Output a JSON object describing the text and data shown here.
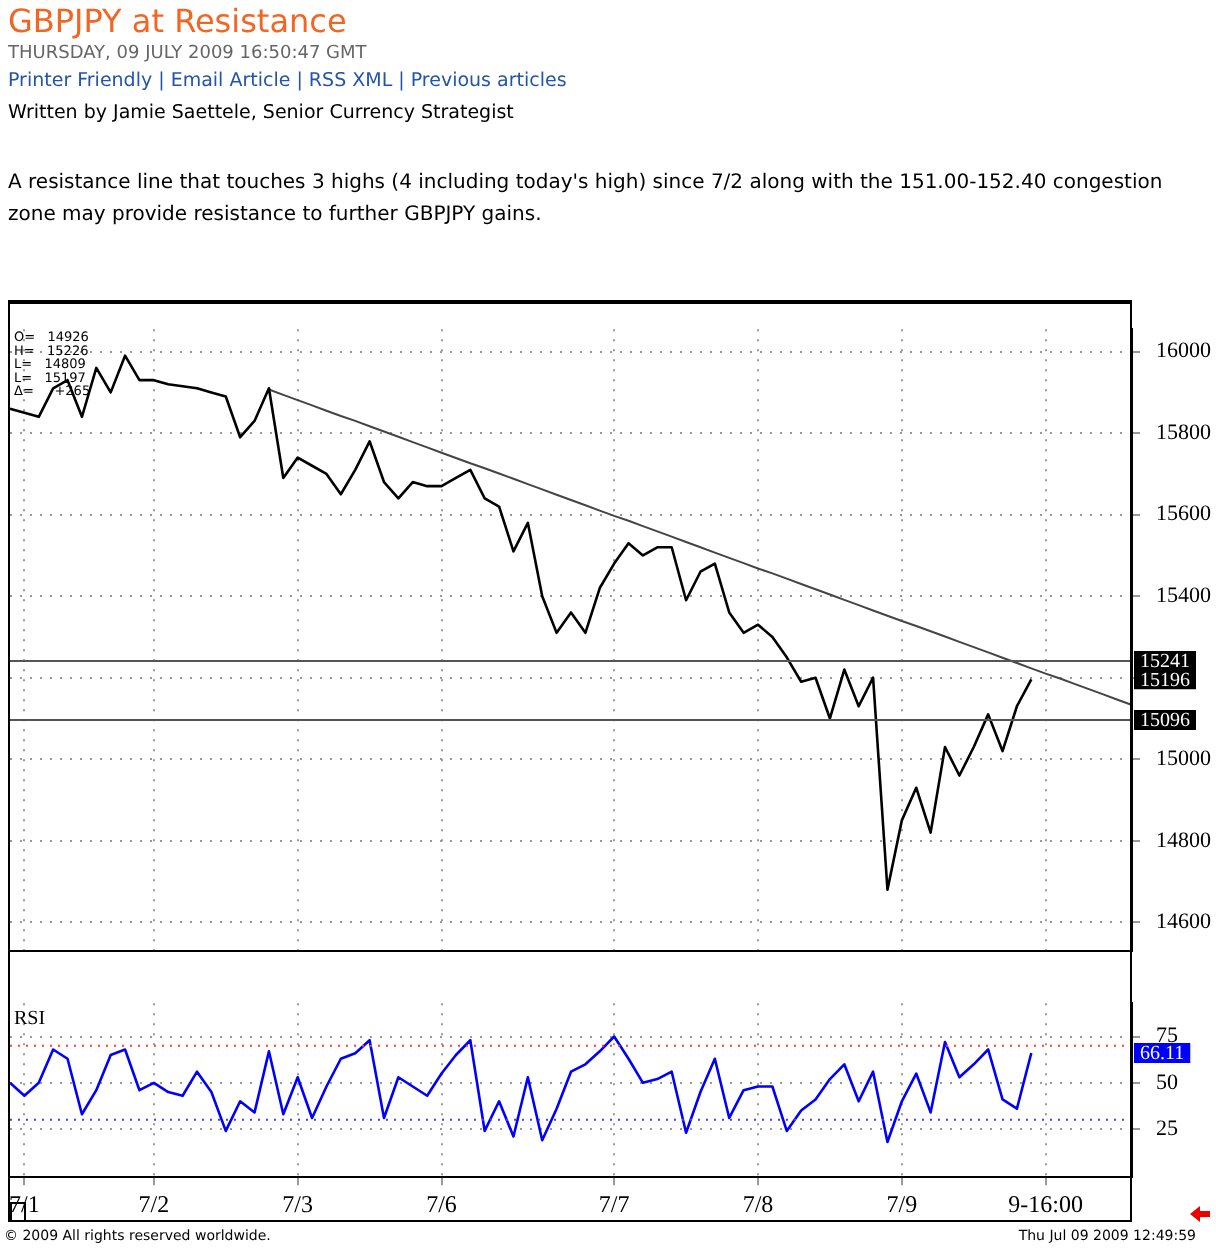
{
  "chart_data": [
    {
      "type": "line",
      "title": "GBPJPY at Resistance",
      "subtitle": "THURSDAY, 09 JULY 2009 16:50:47 GMT",
      "annotations": [
        "Printer Friendly | Email Article | RSS XML | Previous articles",
        "Written by Jamie Saettele, Senior Currency Strategist",
        "A resistance line that touches 3 highs (4 including today's high) since 7/2 along with the 151.00-152.40 congestion zone may provide resistance to further GBPJPY gains.",
        "O=   14926",
        "H=   15226",
        "L=   14809",
        "L=   15197",
        "Δ=     +265",
        {
          "text": "15196",
          "y": 15196
        }
      ],
      "categories": [
        null,
        null,
        null,
        null,
        null,
        null,
        null,
        null,
        null,
        null,
        null,
        null,
        null,
        null,
        null,
        null,
        null,
        null,
        null,
        null,
        null,
        null,
        null,
        null,
        null,
        null,
        null,
        null,
        null,
        null,
        null,
        null,
        null,
        null,
        null,
        null,
        null,
        null,
        null,
        null,
        null,
        null,
        null,
        null,
        null,
        null,
        null,
        null,
        null,
        null,
        null,
        null,
        null,
        null,
        null,
        null,
        null,
        null,
        null,
        null,
        null,
        null,
        null,
        null,
        null,
        null,
        null,
        null,
        null,
        null,
        null,
        null,
        null,
        null,
        null,
        null,
        null,
        null,
        null
      ],
      "series": [
        {
          "color": "#000000",
          "values": [
            15860,
            15850,
            15840,
            15910,
            15930,
            15840,
            15960,
            15900,
            15990,
            15930,
            15930,
            15920,
            15915,
            15910,
            15900,
            15890,
            15790,
            15830,
            15910,
            15690,
            15740,
            15720,
            15700,
            15650,
            15710,
            15780,
            15680,
            15640,
            15680,
            15670,
            15670,
            15690,
            15710,
            15640,
            15620,
            15510,
            15580,
            15400,
            15310,
            15360,
            15310,
            15420,
            15480,
            15530,
            15500,
            15520,
            15520,
            15390,
            15460,
            15480,
            15360,
            15310,
            15330,
            15300,
            15250,
            15190,
            15200,
            15100,
            15220,
            15130,
            15200,
            14680,
            14850,
            14930,
            14820,
            15030,
            14960,
            15030,
            15110,
            15020,
            15130,
            15196,
            null,
            null,
            null,
            null,
            null,
            null,
            null
          ]
        },
        {
          "type": "line",
          "color": "#444444",
          "values": [
            null,
            null,
            null,
            null,
            null,
            null,
            null,
            null,
            null,
            null,
            null,
            null,
            null,
            null,
            null,
            null,
            null,
            null,
            15907,
            15894,
            15881,
            15868,
            15855,
            15842,
            15830,
            15817,
            15804,
            15791,
            15778,
            15765,
            15752,
            15739,
            15726,
            15714,
            15701,
            15688,
            15675,
            15662,
            15649,
            15636,
            15623,
            15610,
            15597,
            15585,
            15572,
            15559,
            15546,
            15533,
            15520,
            15507,
            15494,
            15481,
            15468,
            15456,
            15443,
            15430,
            15417,
            15404,
            15391,
            15378,
            15365,
            15352,
            15339,
            15327,
            15314,
            15301,
            15288,
            15275,
            15262,
            15249,
            15236,
            15223,
            15210,
            15198,
            15185,
            15172,
            15159,
            15146,
            15133
          ]
        }
      ],
      "ref_lines": [
        {
          "axis": "y",
          "value": 15241,
          "label": "15241",
          "color": "#555555"
        },
        {
          "axis": "y",
          "value": 15096,
          "label": "15096",
          "color": "#555555"
        }
      ],
      "ylim": [
        14530,
        16055
      ],
      "yticks": [
        14600,
        14800,
        15000,
        {
          "value": 15200,
          "label": null
        },
        15400,
        15600,
        15800,
        16000
      ],
      "tick_labels": "y",
      "grid": true,
      "legend": false,
      "marker": "none",
      "line_style": "solid"
    },
    {
      "type": "line",
      "title": "RSI",
      "annotations": [
        "© 2009 All rights reserved worldwide.",
        "Thu Jul 09 2009 12:49:59",
        {
          "text": "66.11",
          "y": 66.11
        }
      ],
      "categories": [
        null,
        "7/1",
        null,
        null,
        null,
        null,
        null,
        null,
        null,
        null,
        "7/2",
        null,
        null,
        null,
        null,
        null,
        null,
        null,
        null,
        null,
        "7/3",
        null,
        null,
        null,
        null,
        null,
        null,
        null,
        null,
        null,
        "7/6",
        null,
        null,
        null,
        null,
        null,
        null,
        null,
        null,
        null,
        null,
        null,
        "7/7",
        null,
        null,
        null,
        null,
        null,
        null,
        null,
        null,
        null,
        "7/8",
        null,
        null,
        null,
        null,
        null,
        null,
        null,
        null,
        null,
        "7/9",
        null,
        null,
        null,
        null,
        null,
        null,
        null,
        null,
        null,
        "9-16:00",
        null,
        null,
        null,
        null,
        null,
        null
      ],
      "series": [
        {
          "color": "#0000ff",
          "values": [
            50,
            43,
            50,
            68,
            63,
            33,
            46,
            65,
            68,
            46,
            50,
            45,
            43,
            56,
            45,
            24,
            40,
            34,
            67,
            33,
            53,
            31,
            48,
            63,
            66,
            73,
            31,
            53,
            48,
            43,
            55,
            65,
            73,
            24,
            40,
            21,
            53,
            19,
            36,
            56,
            60,
            67,
            75,
            63,
            50,
            52,
            56,
            23,
            45,
            63,
            31,
            46,
            48,
            48,
            24,
            35,
            41,
            52,
            60,
            40,
            56,
            18,
            40,
            55,
            34,
            72,
            53,
            60,
            68,
            41,
            36,
            66.11,
            null,
            null,
            null,
            null,
            null,
            null,
            null
          ]
        }
      ],
      "ref_lines": [
        {
          "axis": "y",
          "value": 70,
          "color": "#ff4040",
          "line_style": "dotted"
        },
        {
          "axis": "y",
          "value": 30,
          "color": "#4040ff",
          "line_style": "dotted"
        }
      ],
      "ylim": [
        -1,
        93
      ],
      "yticks": [
        25,
        50,
        75
      ],
      "grid": true,
      "legend": false,
      "marker": "none",
      "line_style": "solid"
    }
  ]
}
